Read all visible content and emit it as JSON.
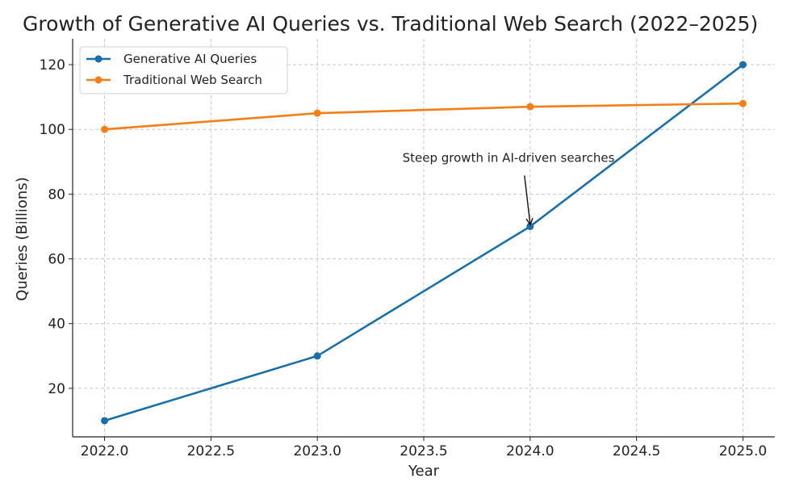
{
  "chart_data": {
    "type": "line",
    "title": "Growth of Generative AI Queries vs. Traditional Web Search (2022–2025)",
    "xlabel": "Year",
    "ylabel": "Queries (Billions)",
    "x": [
      2022,
      2023,
      2024,
      2025
    ],
    "xlim": [
      2021.85,
      2025.15
    ],
    "ylim": [
      5,
      128
    ],
    "x_ticks": [
      2022.0,
      2022.5,
      2023.0,
      2023.5,
      2024.0,
      2024.5,
      2025.0
    ],
    "x_tick_labels": [
      "2022.0",
      "2022.5",
      "2023.0",
      "2023.5",
      "2024.0",
      "2024.5",
      "2025.0"
    ],
    "y_ticks": [
      20,
      40,
      60,
      80,
      100,
      120
    ],
    "y_tick_labels": [
      "20",
      "40",
      "60",
      "80",
      "100",
      "120"
    ],
    "grid": true,
    "legend_position": "top-left",
    "series": [
      {
        "name": "Generative AI Queries",
        "values": [
          10,
          30,
          70,
          120
        ],
        "color": "#1a6fa8"
      },
      {
        "name": "Traditional Web Search",
        "values": [
          100,
          105,
          107,
          108
        ],
        "color": "#f57f17"
      }
    ],
    "annotations": [
      {
        "text": "Steep growth in AI-driven searches",
        "point": [
          2024,
          70
        ],
        "text_at": [
          2023.4,
          90
        ]
      }
    ]
  }
}
